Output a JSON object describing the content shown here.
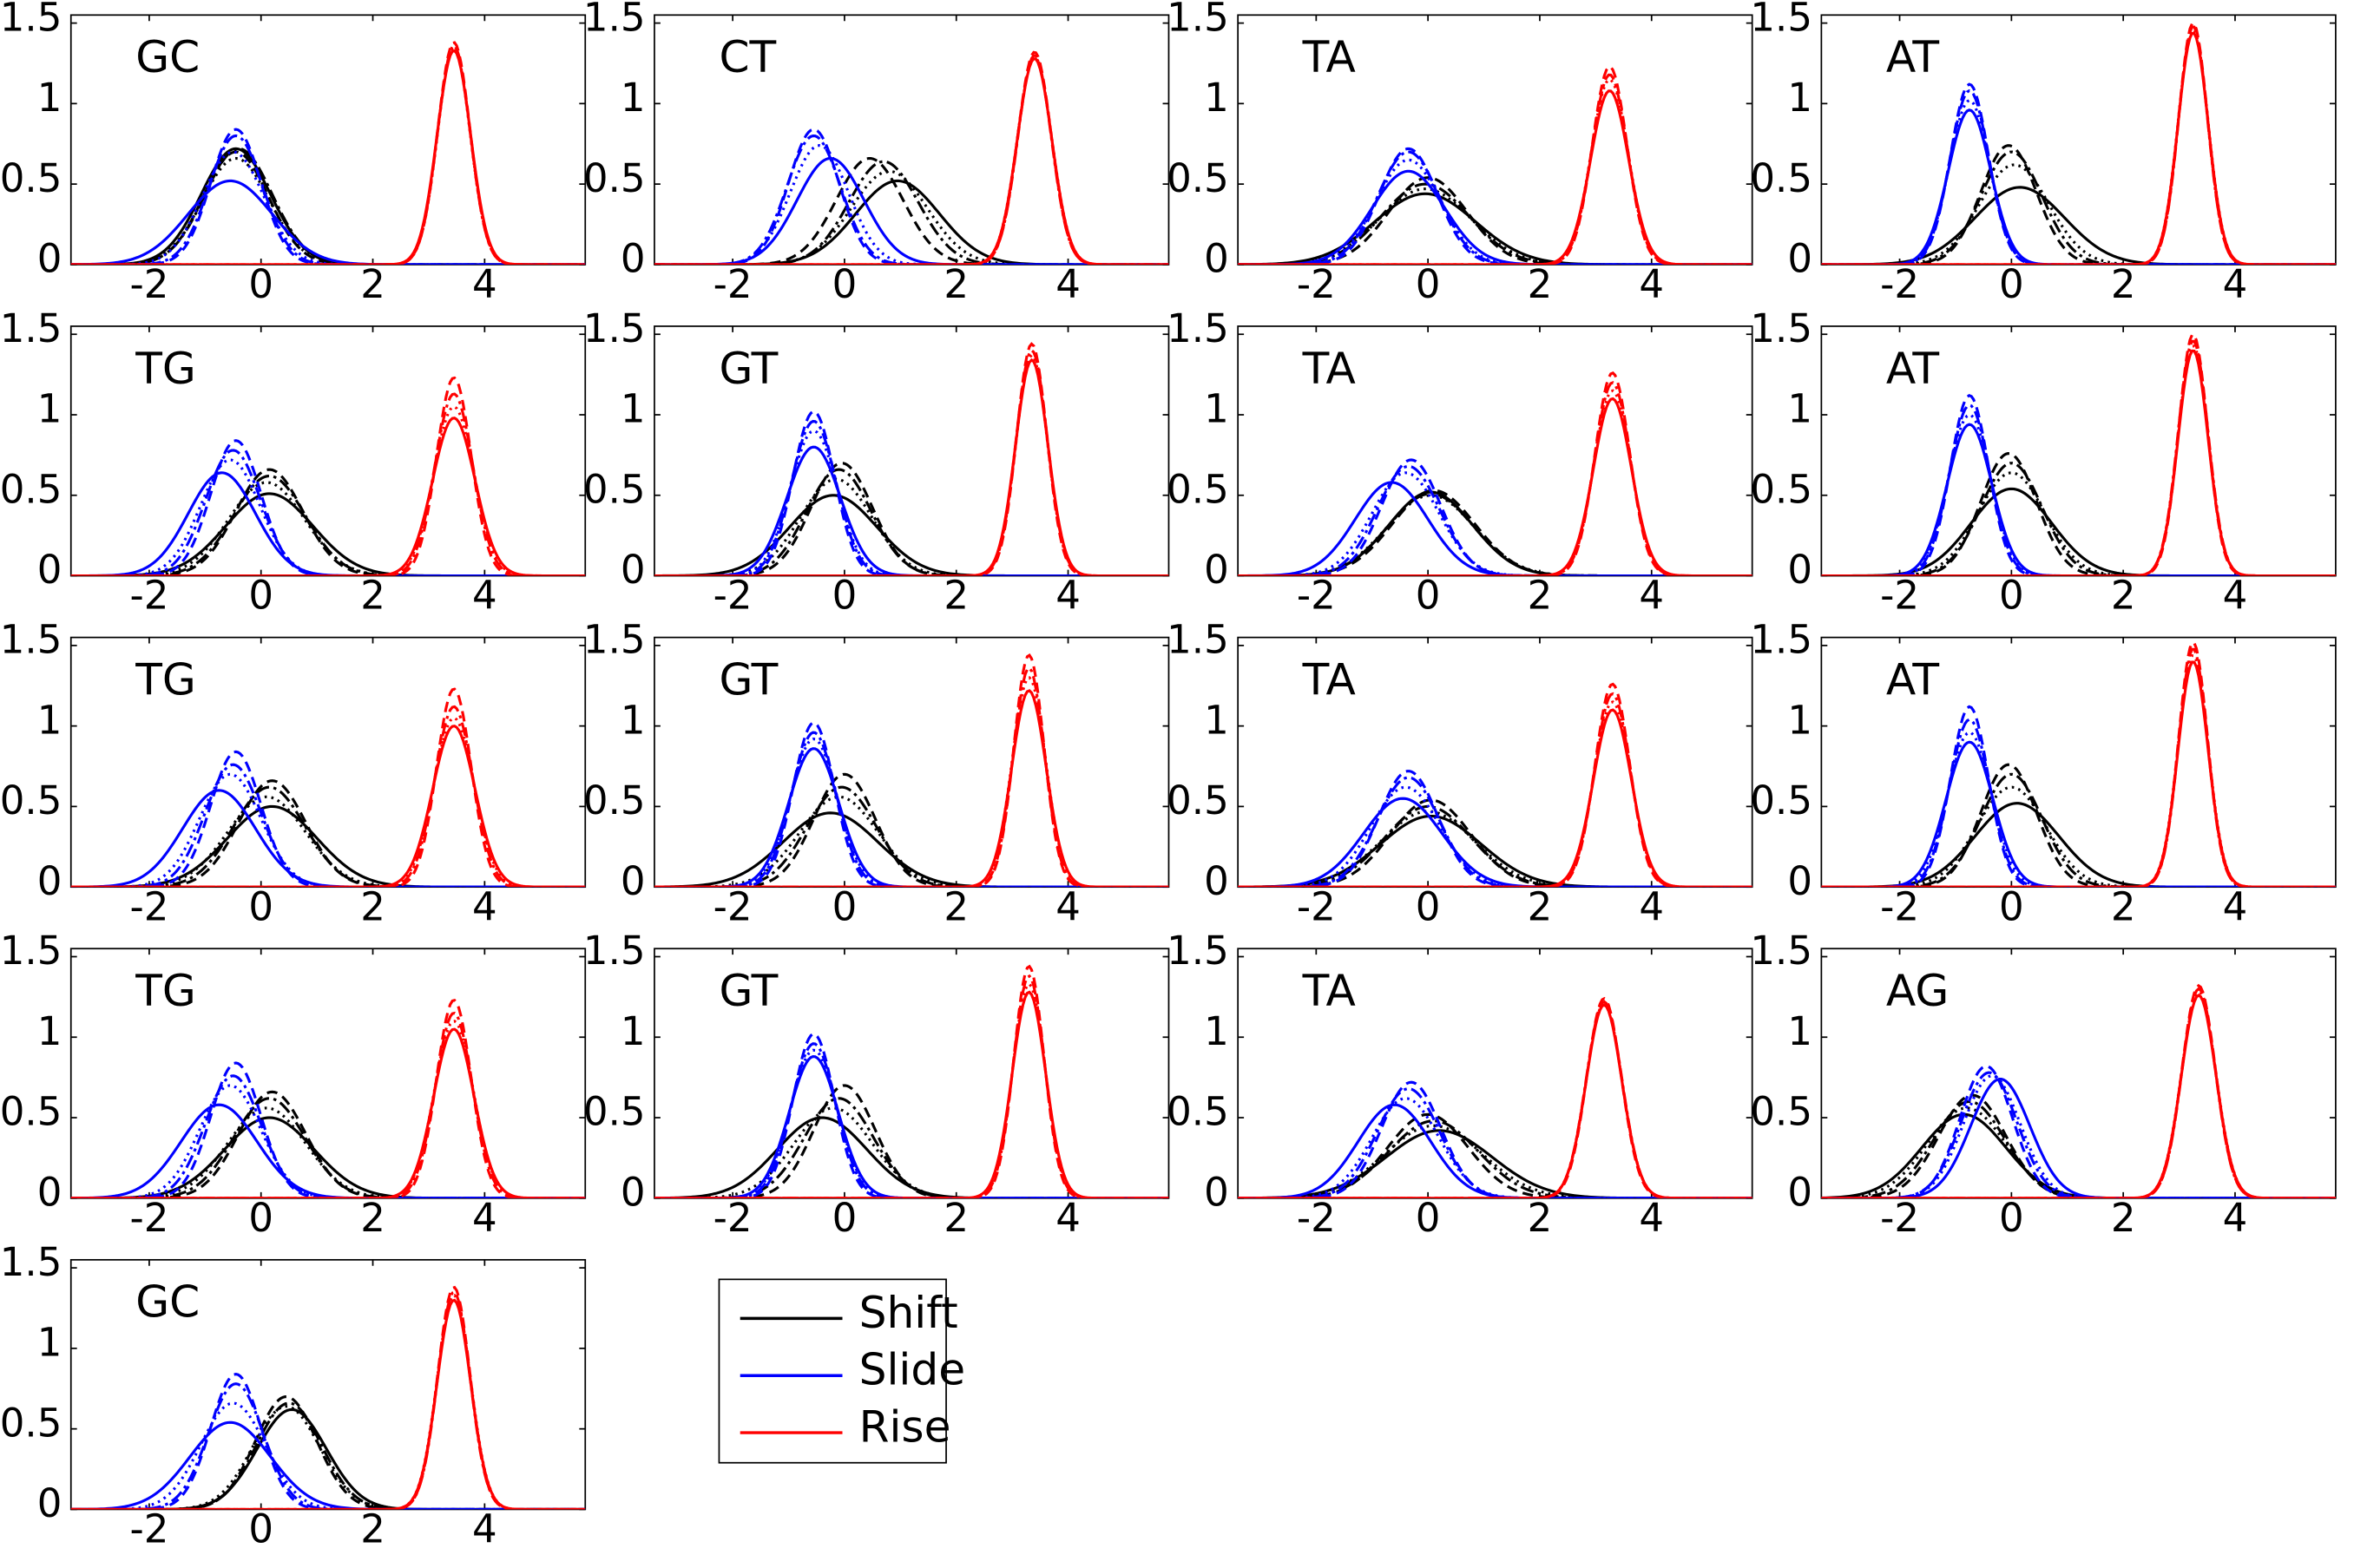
{
  "figure": {
    "legend": [
      {
        "label": "Shift",
        "color": "#000000"
      },
      {
        "label": "Slide",
        "color": "#0000ff"
      },
      {
        "label": "Rise",
        "color": "#ff0000"
      }
    ]
  },
  "chart_data": {
    "type": "line",
    "note_on_styles": "Each panel shows four curves per parameter (solid, dashed, dash-dot, dotted).",
    "xlim": [
      -3.4,
      5.8
    ],
    "ylim": [
      0,
      1.55
    ],
    "x_ticks": [
      "-2",
      "0",
      "2",
      "4"
    ],
    "y_ticks": [
      "0",
      "0.5",
      "1",
      "1.5"
    ],
    "grid": false,
    "legend_position": "bottom, right of last panel",
    "colors": {
      "Shift": "#000000",
      "Slide": "#0000ff",
      "Rise": "#ff0000"
    },
    "panels": [
      {
        "label": "GC",
        "row": 0,
        "col": 0,
        "Shift": [
          [
            -0.45,
            0.72,
            0.62
          ],
          [
            -0.45,
            0.7,
            0.58
          ],
          [
            -0.4,
            0.72,
            0.6
          ],
          [
            -0.45,
            0.66,
            0.6
          ]
        ],
        "Slide": [
          [
            -0.55,
            0.52,
            0.75
          ],
          [
            -0.45,
            0.84,
            0.45
          ],
          [
            -0.45,
            0.8,
            0.48
          ],
          [
            -0.5,
            0.7,
            0.55
          ]
        ],
        "Rise": [
          [
            3.45,
            1.33,
            0.3
          ],
          [
            3.45,
            1.38,
            0.29
          ],
          [
            3.45,
            1.36,
            0.29
          ],
          [
            3.45,
            1.35,
            0.29
          ]
        ]
      },
      {
        "label": "CT",
        "row": 0,
        "col": 1,
        "Shift": [
          [
            0.95,
            0.52,
            0.75
          ],
          [
            0.45,
            0.66,
            0.6
          ],
          [
            0.7,
            0.64,
            0.62
          ],
          [
            0.8,
            0.58,
            0.68
          ]
        ],
        "Slide": [
          [
            -0.25,
            0.66,
            0.6
          ],
          [
            -0.55,
            0.84,
            0.45
          ],
          [
            -0.55,
            0.8,
            0.48
          ],
          [
            -0.45,
            0.74,
            0.52
          ]
        ],
        "Rise": [
          [
            3.4,
            1.28,
            0.31
          ],
          [
            3.4,
            1.32,
            0.3
          ],
          [
            3.4,
            1.3,
            0.3
          ],
          [
            3.4,
            1.29,
            0.31
          ]
        ]
      },
      {
        "label": "TA",
        "row": 0,
        "col": 2,
        "Shift": [
          [
            -0.05,
            0.44,
            0.9
          ],
          [
            0.0,
            0.54,
            0.7
          ],
          [
            -0.05,
            0.5,
            0.78
          ],
          [
            -0.05,
            0.47,
            0.82
          ]
        ],
        "Slide": [
          [
            -0.35,
            0.58,
            0.65
          ],
          [
            -0.35,
            0.72,
            0.52
          ],
          [
            -0.35,
            0.7,
            0.55
          ],
          [
            -0.35,
            0.65,
            0.58
          ]
        ],
        "Rise": [
          [
            3.25,
            1.08,
            0.34
          ],
          [
            3.25,
            1.23,
            0.31
          ],
          [
            3.25,
            1.18,
            0.32
          ],
          [
            3.25,
            1.15,
            0.33
          ]
        ]
      },
      {
        "label": "AT",
        "row": 0,
        "col": 3,
        "Shift": [
          [
            0.15,
            0.48,
            0.8
          ],
          [
            -0.05,
            0.74,
            0.5
          ],
          [
            0.0,
            0.7,
            0.55
          ],
          [
            0.05,
            0.62,
            0.62
          ]
        ],
        "Slide": [
          [
            -0.75,
            0.96,
            0.38
          ],
          [
            -0.75,
            1.12,
            0.34
          ],
          [
            -0.75,
            1.08,
            0.35
          ],
          [
            -0.75,
            1.02,
            0.36
          ]
        ],
        "Rise": [
          [
            3.25,
            1.44,
            0.27
          ],
          [
            3.25,
            1.5,
            0.26
          ],
          [
            3.25,
            1.48,
            0.26
          ],
          [
            3.25,
            1.46,
            0.27
          ]
        ]
      },
      {
        "label": "TG",
        "row": 1,
        "col": 0,
        "Shift": [
          [
            0.15,
            0.51,
            0.78
          ],
          [
            0.15,
            0.66,
            0.6
          ],
          [
            0.15,
            0.62,
            0.64
          ],
          [
            0.1,
            0.58,
            0.68
          ]
        ],
        "Slide": [
          [
            -0.7,
            0.64,
            0.6
          ],
          [
            -0.45,
            0.84,
            0.45
          ],
          [
            -0.5,
            0.78,
            0.49
          ],
          [
            -0.55,
            0.72,
            0.53
          ]
        ],
        "Rise": [
          [
            3.45,
            0.98,
            0.38
          ],
          [
            3.45,
            1.23,
            0.31
          ],
          [
            3.45,
            1.13,
            0.34
          ],
          [
            3.45,
            1.05,
            0.36
          ]
        ]
      },
      {
        "label": "GT",
        "row": 1,
        "col": 1,
        "Shift": [
          [
            -0.2,
            0.5,
            0.78
          ],
          [
            -0.05,
            0.7,
            0.55
          ],
          [
            -0.1,
            0.66,
            0.58
          ],
          [
            -0.15,
            0.6,
            0.64
          ]
        ],
        "Slide": [
          [
            -0.55,
            0.8,
            0.48
          ],
          [
            -0.55,
            1.02,
            0.37
          ],
          [
            -0.55,
            0.96,
            0.4
          ],
          [
            -0.55,
            0.9,
            0.42
          ]
        ],
        "Rise": [
          [
            3.35,
            1.34,
            0.29
          ],
          [
            3.35,
            1.44,
            0.27
          ],
          [
            3.35,
            1.4,
            0.28
          ],
          [
            3.35,
            1.37,
            0.28
          ]
        ]
      },
      {
        "label": "TA",
        "row": 1,
        "col": 2,
        "Shift": [
          [
            0.05,
            0.52,
            0.75
          ],
          [
            0.1,
            0.53,
            0.74
          ],
          [
            0.05,
            0.51,
            0.76
          ],
          [
            0.05,
            0.5,
            0.78
          ]
        ],
        "Slide": [
          [
            -0.65,
            0.58,
            0.65
          ],
          [
            -0.3,
            0.72,
            0.53
          ],
          [
            -0.35,
            0.68,
            0.56
          ],
          [
            -0.4,
            0.64,
            0.6
          ]
        ],
        "Rise": [
          [
            3.3,
            1.1,
            0.34
          ],
          [
            3.3,
            1.26,
            0.31
          ],
          [
            3.3,
            1.2,
            0.32
          ],
          [
            3.3,
            1.15,
            0.33
          ]
        ]
      },
      {
        "label": "AT",
        "row": 1,
        "col": 3,
        "Shift": [
          [
            0.0,
            0.54,
            0.72
          ],
          [
            -0.05,
            0.76,
            0.5
          ],
          [
            0.0,
            0.7,
            0.55
          ],
          [
            0.0,
            0.64,
            0.6
          ]
        ],
        "Slide": [
          [
            -0.75,
            0.94,
            0.4
          ],
          [
            -0.75,
            1.12,
            0.34
          ],
          [
            -0.75,
            1.06,
            0.36
          ],
          [
            -0.75,
            1.0,
            0.38
          ]
        ],
        "Rise": [
          [
            3.25,
            1.4,
            0.27
          ],
          [
            3.25,
            1.5,
            0.26
          ],
          [
            3.25,
            1.46,
            0.27
          ],
          [
            3.25,
            1.43,
            0.27
          ]
        ]
      },
      {
        "label": "TG",
        "row": 2,
        "col": 0,
        "Shift": [
          [
            0.2,
            0.5,
            0.8
          ],
          [
            0.2,
            0.66,
            0.6
          ],
          [
            0.15,
            0.62,
            0.64
          ],
          [
            0.1,
            0.56,
            0.7
          ]
        ],
        "Slide": [
          [
            -0.75,
            0.6,
            0.65
          ],
          [
            -0.45,
            0.84,
            0.45
          ],
          [
            -0.5,
            0.76,
            0.5
          ],
          [
            -0.55,
            0.7,
            0.55
          ]
        ],
        "Rise": [
          [
            3.45,
            1.0,
            0.38
          ],
          [
            3.45,
            1.23,
            0.31
          ],
          [
            3.45,
            1.12,
            0.34
          ],
          [
            3.45,
            1.05,
            0.36
          ]
        ]
      },
      {
        "label": "GT",
        "row": 2,
        "col": 1,
        "Shift": [
          [
            -0.25,
            0.46,
            0.85
          ],
          [
            0.0,
            0.7,
            0.55
          ],
          [
            -0.05,
            0.62,
            0.62
          ],
          [
            -0.1,
            0.56,
            0.7
          ]
        ],
        "Slide": [
          [
            -0.55,
            0.86,
            0.45
          ],
          [
            -0.55,
            1.02,
            0.37
          ],
          [
            -0.55,
            0.96,
            0.4
          ],
          [
            -0.55,
            0.92,
            0.42
          ]
        ],
        "Rise": [
          [
            3.3,
            1.22,
            0.31
          ],
          [
            3.3,
            1.44,
            0.27
          ],
          [
            3.3,
            1.36,
            0.28
          ],
          [
            3.3,
            1.3,
            0.3
          ]
        ]
      },
      {
        "label": "TA",
        "row": 2,
        "col": 2,
        "Shift": [
          [
            0.05,
            0.44,
            0.9
          ],
          [
            0.05,
            0.54,
            0.72
          ],
          [
            0.0,
            0.5,
            0.78
          ],
          [
            0.0,
            0.47,
            0.84
          ]
        ],
        "Slide": [
          [
            -0.45,
            0.55,
            0.7
          ],
          [
            -0.35,
            0.72,
            0.53
          ],
          [
            -0.35,
            0.68,
            0.56
          ],
          [
            -0.4,
            0.62,
            0.62
          ]
        ],
        "Rise": [
          [
            3.3,
            1.1,
            0.34
          ],
          [
            3.3,
            1.26,
            0.31
          ],
          [
            3.3,
            1.2,
            0.32
          ],
          [
            3.3,
            1.15,
            0.33
          ]
        ]
      },
      {
        "label": "AT",
        "row": 2,
        "col": 3,
        "Shift": [
          [
            0.1,
            0.52,
            0.75
          ],
          [
            -0.05,
            0.76,
            0.5
          ],
          [
            0.0,
            0.7,
            0.55
          ],
          [
            0.0,
            0.62,
            0.62
          ]
        ],
        "Slide": [
          [
            -0.75,
            0.9,
            0.42
          ],
          [
            -0.75,
            1.12,
            0.34
          ],
          [
            -0.75,
            1.04,
            0.36
          ],
          [
            -0.75,
            0.96,
            0.39
          ]
        ],
        "Rise": [
          [
            3.25,
            1.4,
            0.27
          ],
          [
            3.25,
            1.52,
            0.26
          ],
          [
            3.25,
            1.48,
            0.26
          ],
          [
            3.25,
            1.44,
            0.27
          ]
        ]
      },
      {
        "label": "TG",
        "row": 3,
        "col": 0,
        "Shift": [
          [
            0.15,
            0.5,
            0.8
          ],
          [
            0.2,
            0.66,
            0.6
          ],
          [
            0.15,
            0.62,
            0.64
          ],
          [
            0.1,
            0.56,
            0.7
          ]
        ],
        "Slide": [
          [
            -0.75,
            0.58,
            0.68
          ],
          [
            -0.45,
            0.84,
            0.45
          ],
          [
            -0.5,
            0.76,
            0.5
          ],
          [
            -0.55,
            0.7,
            0.55
          ]
        ],
        "Rise": [
          [
            3.45,
            1.05,
            0.36
          ],
          [
            3.45,
            1.23,
            0.31
          ],
          [
            3.45,
            1.15,
            0.33
          ],
          [
            3.45,
            1.1,
            0.35
          ]
        ]
      },
      {
        "label": "GT",
        "row": 3,
        "col": 1,
        "Shift": [
          [
            -0.4,
            0.5,
            0.8
          ],
          [
            0.0,
            0.7,
            0.55
          ],
          [
            -0.1,
            0.62,
            0.62
          ],
          [
            -0.2,
            0.56,
            0.7
          ]
        ],
        "Slide": [
          [
            -0.55,
            0.88,
            0.44
          ],
          [
            -0.55,
            1.02,
            0.37
          ],
          [
            -0.55,
            0.96,
            0.4
          ],
          [
            -0.55,
            0.92,
            0.42
          ]
        ],
        "Rise": [
          [
            3.3,
            1.28,
            0.3
          ],
          [
            3.3,
            1.44,
            0.27
          ],
          [
            3.3,
            1.38,
            0.28
          ],
          [
            3.3,
            1.33,
            0.29
          ]
        ]
      },
      {
        "label": "TA",
        "row": 3,
        "col": 2,
        "Shift": [
          [
            0.2,
            0.42,
            0.95
          ],
          [
            0.0,
            0.52,
            0.72
          ],
          [
            0.1,
            0.48,
            0.8
          ],
          [
            0.1,
            0.45,
            0.88
          ]
        ],
        "Slide": [
          [
            -0.6,
            0.58,
            0.65
          ],
          [
            -0.3,
            0.72,
            0.53
          ],
          [
            -0.35,
            0.68,
            0.56
          ],
          [
            -0.4,
            0.62,
            0.6
          ]
        ],
        "Rise": [
          [
            3.15,
            1.2,
            0.32
          ],
          [
            3.15,
            1.24,
            0.31
          ],
          [
            3.15,
            1.22,
            0.32
          ],
          [
            3.15,
            1.21,
            0.32
          ]
        ]
      },
      {
        "label": "AG",
        "row": 3,
        "col": 3,
        "Shift": [
          [
            -0.85,
            0.52,
            0.75
          ],
          [
            -0.7,
            0.64,
            0.6
          ],
          [
            -0.75,
            0.6,
            0.64
          ],
          [
            -0.8,
            0.56,
            0.7
          ]
        ],
        "Slide": [
          [
            -0.2,
            0.74,
            0.53
          ],
          [
            -0.45,
            0.82,
            0.47
          ],
          [
            -0.4,
            0.78,
            0.5
          ],
          [
            -0.35,
            0.76,
            0.51
          ]
        ],
        "Rise": [
          [
            3.35,
            1.26,
            0.31
          ],
          [
            3.35,
            1.32,
            0.3
          ],
          [
            3.35,
            1.3,
            0.3
          ],
          [
            3.35,
            1.28,
            0.31
          ]
        ]
      },
      {
        "label": "GC",
        "row": 4,
        "col": 0,
        "Shift": [
          [
            0.55,
            0.62,
            0.62
          ],
          [
            0.45,
            0.7,
            0.55
          ],
          [
            0.5,
            0.66,
            0.58
          ],
          [
            0.45,
            0.64,
            0.6
          ]
        ],
        "Slide": [
          [
            -0.55,
            0.54,
            0.72
          ],
          [
            -0.45,
            0.84,
            0.45
          ],
          [
            -0.45,
            0.78,
            0.49
          ],
          [
            -0.5,
            0.66,
            0.58
          ]
        ],
        "Rise": [
          [
            3.45,
            1.3,
            0.3
          ],
          [
            3.45,
            1.38,
            0.29
          ],
          [
            3.45,
            1.35,
            0.29
          ],
          [
            3.45,
            1.33,
            0.3
          ]
        ]
      }
    ]
  }
}
